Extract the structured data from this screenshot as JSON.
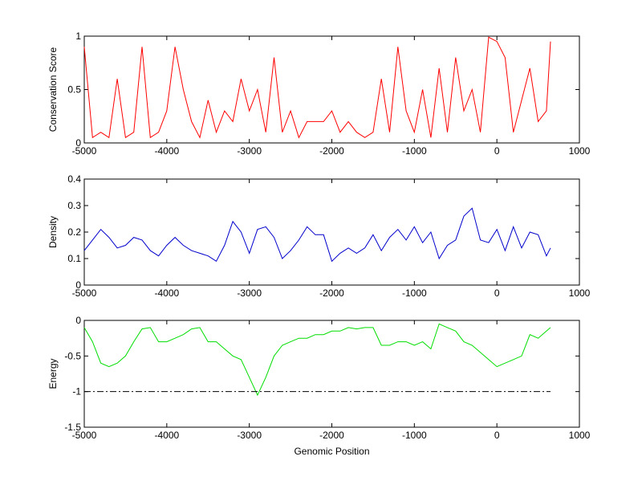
{
  "chart_data": [
    {
      "type": "line",
      "ylabel": "Conservation Score",
      "color": "#ff0000",
      "x": [
        -5000,
        -4900,
        -4800,
        -4700,
        -4600,
        -4500,
        -4400,
        -4300,
        -4200,
        -4100,
        -4000,
        -3900,
        -3800,
        -3700,
        -3600,
        -3500,
        -3400,
        -3300,
        -3200,
        -3100,
        -3000,
        -2900,
        -2800,
        -2700,
        -2600,
        -2500,
        -2400,
        -2300,
        -2200,
        -2100,
        -2000,
        -1900,
        -1800,
        -1700,
        -1600,
        -1500,
        -1400,
        -1300,
        -1200,
        -1100,
        -1000,
        -900,
        -800,
        -700,
        -600,
        -500,
        -400,
        -300,
        -200,
        -100,
        0,
        100,
        200,
        300,
        400,
        500,
        600,
        650
      ],
      "values": [
        0.9,
        0.05,
        0.1,
        0.05,
        0.6,
        0.05,
        0.1,
        0.9,
        0.05,
        0.1,
        0.3,
        0.9,
        0.5,
        0.2,
        0.05,
        0.4,
        0.1,
        0.3,
        0.2,
        0.6,
        0.3,
        0.5,
        0.1,
        0.8,
        0.1,
        0.3,
        0.05,
        0.2,
        0.2,
        0.2,
        0.3,
        0.1,
        0.2,
        0.1,
        0.05,
        0.1,
        0.6,
        0.1,
        0.9,
        0.3,
        0.1,
        0.5,
        0.05,
        0.7,
        0.1,
        0.8,
        0.3,
        0.5,
        0.1,
        0.99,
        0.95,
        0.8,
        0.1,
        0.4,
        0.7,
        0.2,
        0.3,
        0.95
      ],
      "xlim": [
        -5000,
        1000
      ],
      "xticks": [
        -5000,
        -4000,
        -3000,
        -2000,
        -1000,
        0,
        1000
      ],
      "ylim": [
        0,
        1
      ],
      "yticks": [
        0,
        0.5,
        1
      ]
    },
    {
      "type": "line",
      "ylabel": "Density",
      "color": "#0000cc",
      "x": [
        -5000,
        -4900,
        -4800,
        -4700,
        -4600,
        -4500,
        -4400,
        -4300,
        -4200,
        -4100,
        -4000,
        -3900,
        -3800,
        -3700,
        -3600,
        -3500,
        -3400,
        -3300,
        -3200,
        -3100,
        -3000,
        -2900,
        -2800,
        -2700,
        -2600,
        -2500,
        -2400,
        -2300,
        -2200,
        -2100,
        -2000,
        -1900,
        -1800,
        -1700,
        -1600,
        -1500,
        -1400,
        -1300,
        -1200,
        -1100,
        -1000,
        -900,
        -800,
        -700,
        -600,
        -500,
        -400,
        -300,
        -200,
        -100,
        0,
        100,
        200,
        300,
        400,
        500,
        600,
        650
      ],
      "values": [
        0.13,
        0.17,
        0.21,
        0.18,
        0.14,
        0.15,
        0.18,
        0.17,
        0.13,
        0.11,
        0.15,
        0.18,
        0.15,
        0.13,
        0.12,
        0.11,
        0.09,
        0.15,
        0.24,
        0.2,
        0.12,
        0.21,
        0.22,
        0.18,
        0.1,
        0.13,
        0.17,
        0.22,
        0.19,
        0.19,
        0.09,
        0.12,
        0.14,
        0.12,
        0.14,
        0.19,
        0.13,
        0.18,
        0.21,
        0.17,
        0.22,
        0.16,
        0.2,
        0.1,
        0.15,
        0.17,
        0.26,
        0.29,
        0.17,
        0.16,
        0.21,
        0.13,
        0.22,
        0.14,
        0.2,
        0.19,
        0.11,
        0.14
      ],
      "xlim": [
        -5000,
        1000
      ],
      "xticks": [
        -5000,
        -4000,
        -3000,
        -2000,
        -1000,
        0,
        1000
      ],
      "ylim": [
        0,
        0.4
      ],
      "yticks": [
        0,
        0.1,
        0.2,
        0.3,
        0.4
      ]
    },
    {
      "type": "line",
      "ylabel": "Energy",
      "xlabel": "Genomic Position",
      "color": "#00dd00",
      "x": [
        -5000,
        -4900,
        -4800,
        -4700,
        -4600,
        -4500,
        -4400,
        -4300,
        -4200,
        -4100,
        -4000,
        -3900,
        -3800,
        -3700,
        -3600,
        -3500,
        -3400,
        -3300,
        -3200,
        -3100,
        -3000,
        -2900,
        -2800,
        -2700,
        -2600,
        -2500,
        -2400,
        -2300,
        -2200,
        -2100,
        -2000,
        -1900,
        -1800,
        -1700,
        -1600,
        -1500,
        -1400,
        -1300,
        -1200,
        -1100,
        -1000,
        -900,
        -800,
        -700,
        -600,
        -500,
        -400,
        -300,
        -200,
        -100,
        0,
        100,
        200,
        300,
        400,
        500,
        600,
        650
      ],
      "values": [
        -0.1,
        -0.3,
        -0.6,
        -0.65,
        -0.6,
        -0.5,
        -0.3,
        -0.12,
        -0.1,
        -0.3,
        -0.3,
        -0.25,
        -0.2,
        -0.12,
        -0.1,
        -0.3,
        -0.3,
        -0.4,
        -0.5,
        -0.55,
        -0.8,
        -1.05,
        -0.8,
        -0.5,
        -0.35,
        -0.3,
        -0.25,
        -0.25,
        -0.2,
        -0.2,
        -0.15,
        -0.15,
        -0.1,
        -0.12,
        -0.1,
        -0.1,
        -0.35,
        -0.35,
        -0.3,
        -0.3,
        -0.35,
        -0.3,
        -0.4,
        -0.05,
        -0.1,
        -0.15,
        -0.3,
        -0.35,
        -0.45,
        -0.55,
        -0.65,
        -0.6,
        -0.55,
        -0.5,
        -0.2,
        -0.25,
        -0.15,
        -0.1
      ],
      "reference_line": {
        "y": -1,
        "x": [
          -5000,
          650
        ],
        "color": "#000000"
      },
      "xlim": [
        -5000,
        1000
      ],
      "xticks": [
        -5000,
        -4000,
        -3000,
        -2000,
        -1000,
        0,
        1000
      ],
      "ylim": [
        -1.5,
        0
      ],
      "yticks": [
        -1.5,
        -1,
        -0.5,
        0
      ]
    }
  ]
}
